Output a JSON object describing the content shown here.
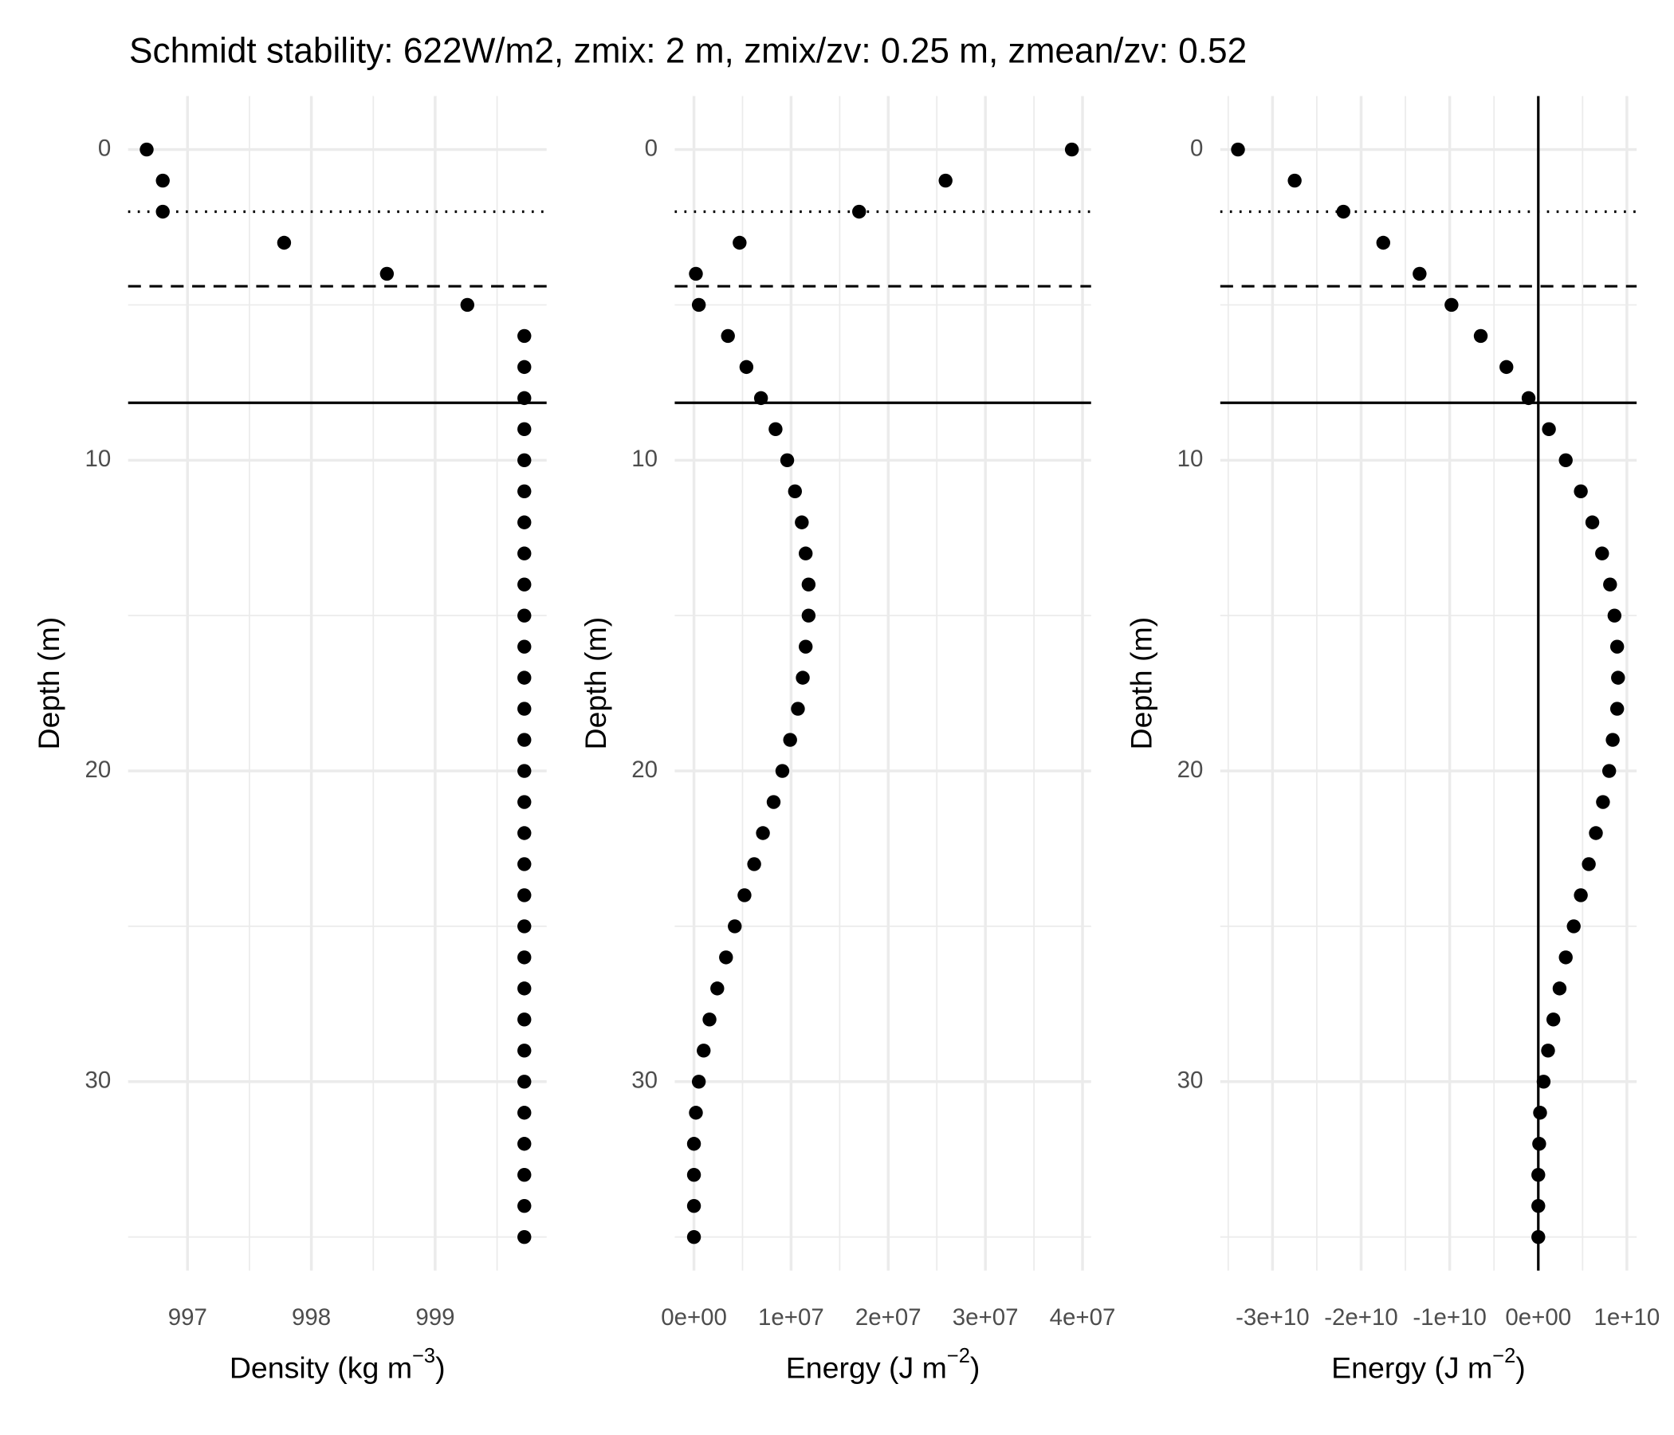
{
  "title": "Schmidt stability: 622W/m2, zmix: 2 m, zmix/zv: 0.25 m, zmean/zv: 0.52",
  "chart_data": [
    {
      "type": "scatter",
      "ylabel": "Depth (m)",
      "xlabel": {
        "text": "Density (kg m",
        "superscript": "−3",
        "suffix": ")"
      },
      "xlim": [
        996.52,
        999.9
      ],
      "xticks": [
        997,
        998,
        999
      ],
      "xminor": [
        997.5,
        998.5,
        999.5
      ],
      "ylim": [
        36.08,
        -1.72
      ],
      "yticks": [
        0,
        10,
        20,
        30
      ],
      "yminor": [
        5,
        15,
        25,
        35
      ],
      "grid": true,
      "color": "#000000",
      "hlines": [
        {
          "value": 2,
          "style": "dotted"
        },
        {
          "value": 4.4,
          "style": "dashed"
        },
        {
          "value": 8.15,
          "style": "solid"
        }
      ],
      "y": [
        0,
        1,
        2,
        3,
        4,
        5,
        6,
        7,
        8,
        9,
        10,
        11,
        12,
        13,
        14,
        15,
        16,
        17,
        18,
        19,
        20,
        21,
        22,
        23,
        24,
        25,
        26,
        27,
        28,
        29,
        30,
        31,
        32,
        33,
        34,
        35
      ],
      "x": [
        996.67,
        996.8,
        996.8,
        997.78,
        998.61,
        999.26,
        999.72,
        999.72,
        999.72,
        999.72,
        999.72,
        999.72,
        999.72,
        999.72,
        999.72,
        999.72,
        999.72,
        999.72,
        999.72,
        999.72,
        999.72,
        999.72,
        999.72,
        999.72,
        999.72,
        999.72,
        999.72,
        999.72,
        999.72,
        999.72,
        999.72,
        999.72,
        999.72,
        999.72,
        999.72,
        999.72
      ]
    },
    {
      "type": "scatter",
      "ylabel": "Depth (m)",
      "xlabel": {
        "text": "Energy (J m",
        "superscript": "−2",
        "suffix": ")"
      },
      "xlim": [
        -1980000,
        40880000
      ],
      "xticks": [
        {
          "value": 0,
          "label": "0e+00"
        },
        {
          "value": 10000000,
          "label": "1e+07"
        },
        {
          "value": 20000000,
          "label": "2e+07"
        },
        {
          "value": 30000000,
          "label": "3e+07"
        },
        {
          "value": 40000000,
          "label": "4e+07"
        }
      ],
      "xminor": [
        5000000,
        15000000,
        25000000,
        35000000
      ],
      "ylim": [
        36.08,
        -1.72
      ],
      "yticks": [
        0,
        10,
        20,
        30
      ],
      "yminor": [
        5,
        15,
        25,
        35
      ],
      "grid": true,
      "color": "#000000",
      "hlines": [
        {
          "value": 2,
          "style": "dotted"
        },
        {
          "value": 4.4,
          "style": "dashed"
        },
        {
          "value": 8.15,
          "style": "solid"
        }
      ],
      "y": [
        0,
        1,
        2,
        3,
        4,
        5,
        6,
        7,
        8,
        9,
        10,
        11,
        12,
        13,
        14,
        15,
        16,
        17,
        18,
        19,
        20,
        21,
        22,
        23,
        24,
        25,
        26,
        27,
        28,
        29,
        30,
        31,
        32,
        33,
        34,
        35
      ],
      "x": [
        38900000,
        25900000,
        17000000,
        4700000,
        200000,
        500000,
        3500000,
        5400000,
        6900000,
        8400000,
        9600000,
        10400000,
        11100000,
        11500000,
        11800000,
        11800000,
        11500000,
        11200000,
        10700000,
        9900000,
        9100000,
        8200000,
        7100000,
        6200000,
        5200000,
        4200000,
        3300000,
        2400000,
        1600000,
        1000000,
        500000,
        200000,
        0,
        0,
        0,
        0
      ]
    },
    {
      "type": "scatter",
      "ylabel": "Depth (m)",
      "xlabel": {
        "text": "Energy (J m",
        "superscript": "−2",
        "suffix": ")"
      },
      "xlim": [
        -35900000000,
        11100000000
      ],
      "xticks": [
        {
          "value": -30000000000,
          "label": "-3e+10"
        },
        {
          "value": -20000000000,
          "label": "-2e+10"
        },
        {
          "value": -10000000000,
          "label": "-1e+10"
        },
        {
          "value": 0,
          "label": "0e+00"
        },
        {
          "value": 10000000000,
          "label": "1e+10"
        }
      ],
      "xminor": [
        -35000000000,
        -25000000000,
        -15000000000,
        -5000000000,
        5000000000
      ],
      "ylim": [
        36.08,
        -1.72
      ],
      "yticks": [
        0,
        10,
        20,
        30
      ],
      "yminor": [
        5,
        15,
        25,
        35
      ],
      "grid": true,
      "color": "#000000",
      "hlines": [
        {
          "value": 2,
          "style": "dotted"
        },
        {
          "value": 4.4,
          "style": "dashed"
        },
        {
          "value": 8.15,
          "style": "solid"
        }
      ],
      "vlines": [
        0
      ],
      "y": [
        0,
        1,
        2,
        3,
        4,
        5,
        6,
        7,
        8,
        9,
        10,
        11,
        12,
        13,
        14,
        15,
        16,
        17,
        18,
        19,
        20,
        21,
        22,
        23,
        24,
        25,
        26,
        27,
        28,
        29,
        30,
        31,
        32,
        33,
        34,
        35
      ],
      "x": [
        -33900000000,
        -27500000000,
        -22000000000,
        -17500000000,
        -13400000000,
        -9800000000,
        -6500000000,
        -3600000000,
        -1100000000,
        1200000000,
        3100000000,
        4800000000,
        6100000000,
        7200000000,
        8100000000,
        8600000000,
        8900000000,
        9000000000,
        8900000000,
        8400000000,
        8000000000,
        7300000000,
        6500000000,
        5700000000,
        4800000000,
        4000000000,
        3100000000,
        2400000000,
        1700000000,
        1100000000,
        600000000,
        200000000,
        100000000,
        0,
        0,
        0
      ]
    }
  ]
}
